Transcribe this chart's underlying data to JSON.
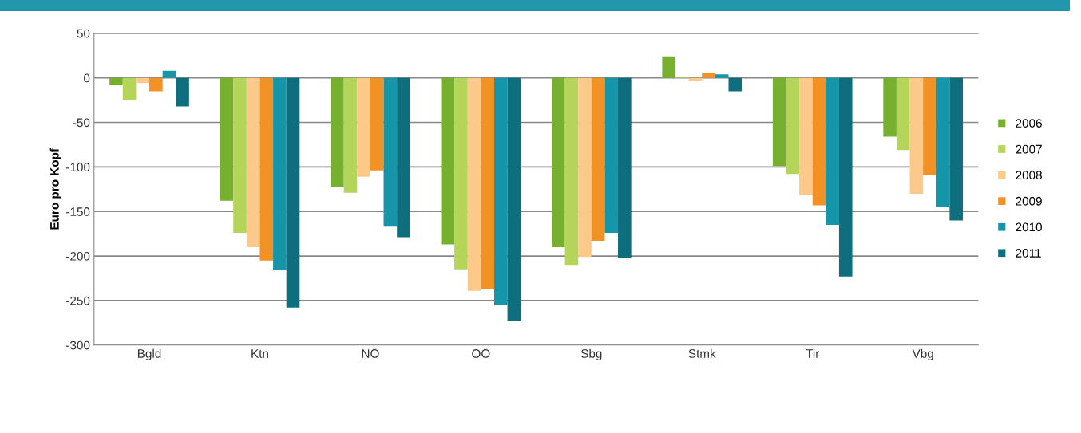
{
  "chart_data": {
    "type": "bar",
    "ylabel": "Euro pro Kopf",
    "categories": [
      "Bgld",
      "Ktn",
      "NÖ",
      "OÖ",
      "Sbg",
      "Stmk",
      "Tir",
      "Vbg"
    ],
    "series": [
      {
        "name": "2006",
        "color": "#77b02f",
        "values": [
          -8,
          -138,
          -123,
          -187,
          -190,
          24,
          -99,
          -66
        ]
      },
      {
        "name": "2007",
        "color": "#b5d55a",
        "values": [
          -25,
          -174,
          -129,
          -215,
          -210,
          1,
          -108,
          -81
        ]
      },
      {
        "name": "2008",
        "color": "#fbc98a",
        "values": [
          -6,
          -190,
          -111,
          -239,
          -201,
          -3,
          -132,
          -130
        ]
      },
      {
        "name": "2009",
        "color": "#f39224",
        "values": [
          -15,
          -205,
          -104,
          -237,
          -183,
          6,
          -143,
          -109
        ]
      },
      {
        "name": "2010",
        "color": "#1596a8",
        "values": [
          8,
          -216,
          -167,
          -255,
          -174,
          4,
          -165,
          -145
        ]
      },
      {
        "name": "2011",
        "color": "#0e6e7e",
        "values": [
          -32,
          -258,
          -179,
          -273,
          -202,
          -15,
          -223,
          -160
        ]
      }
    ],
    "ylim": [
      -300,
      50
    ],
    "yticks": [
      -300,
      -250,
      -200,
      -150,
      -100,
      -50,
      0,
      50
    ],
    "grid": "y",
    "legend": "right"
  }
}
